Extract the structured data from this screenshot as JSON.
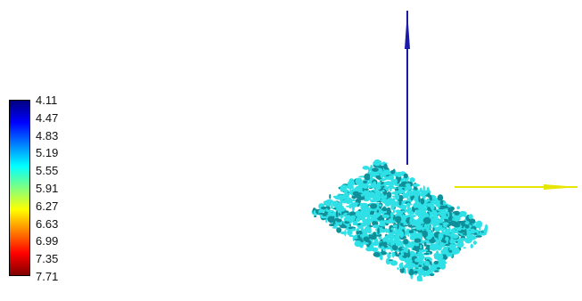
{
  "colorbar": {
    "ticks": [
      "4.11",
      "4.47",
      "4.83",
      "5.19",
      "5.55",
      "5.91",
      "6.27",
      "6.63",
      "6.99",
      "7.35",
      "7.71"
    ],
    "colormap": [
      "#00007f",
      "#0000ff",
      "#007fff",
      "#00ffff",
      "#7fff7f",
      "#ffff00",
      "#ff7f00",
      "#ff0000",
      "#7f0000"
    ]
  },
  "scene": {
    "blob_color": "#2fe0e6",
    "blob_shadow_color": "#0e8f99",
    "vertical_axis_color": "#1a1aa8",
    "horizontal_axis_color": "#e6e600"
  }
}
